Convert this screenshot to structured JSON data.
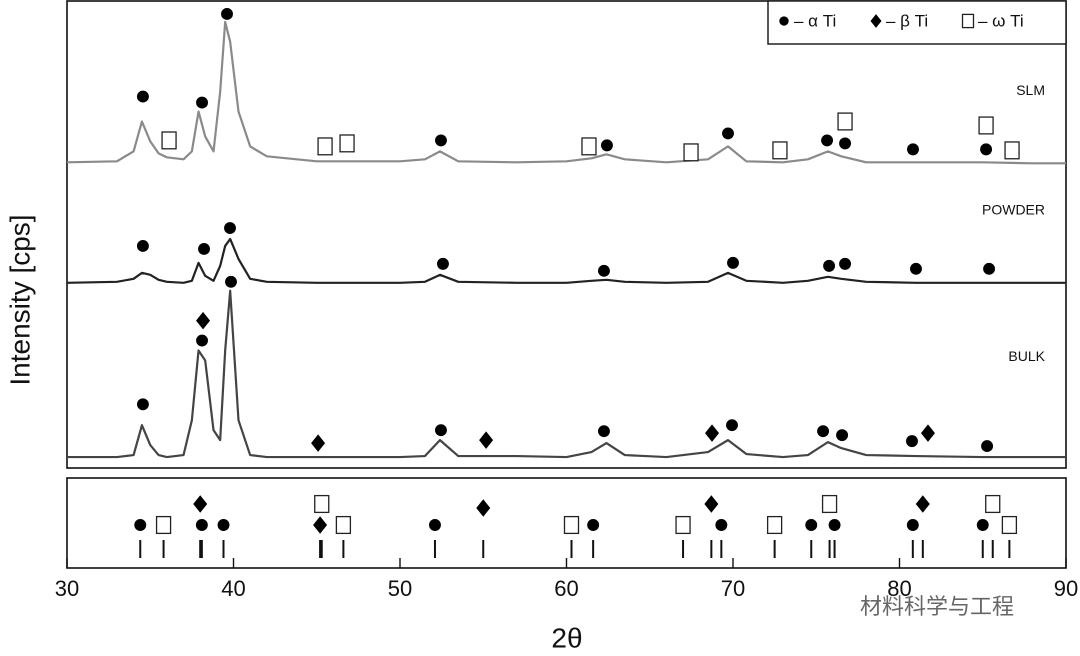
{
  "chart_data": {
    "type": "line",
    "x_label": "2θ",
    "y_label": "Intensity [cps]",
    "xlim": [
      30,
      90
    ],
    "xticks": [
      30,
      40,
      50,
      60,
      70,
      80,
      90
    ],
    "ylim": [
      0,
      468
    ],
    "x": [
      30,
      33,
      34,
      34.5,
      35,
      35.5,
      36,
      37,
      37.5,
      37.9,
      38.3,
      38.8,
      39.2,
      39.5,
      39.8,
      40.3,
      41,
      42,
      45,
      50,
      51.5,
      52.4,
      53.5,
      57,
      60,
      61.5,
      62.4,
      63.5,
      66,
      68.5,
      69.7,
      70.8,
      73,
      74.5,
      75.7,
      76.5,
      78,
      81,
      85,
      88,
      90
    ],
    "series": [
      {
        "name": "SLM",
        "color": "#8a8a8a",
        "values": [
          307,
          308,
          318,
          348,
          328,
          316,
          312,
          310,
          318,
          358,
          333,
          318,
          378,
          448,
          428,
          358,
          323,
          313,
          308,
          308,
          310,
          318,
          308,
          307,
          308,
          311,
          315,
          310,
          307,
          310,
          323,
          308,
          307,
          310,
          318,
          313,
          307,
          307,
          307,
          306,
          306
        ],
        "markers": [
          {
            "symbol": "circle",
            "x": [
              34.56,
              38.11,
              39.61,
              52.46,
              62.43,
              69.7,
              75.65,
              76.73,
              80.81,
              85.2
            ],
            "y": [
              373,
              367,
              456,
              329,
              324,
              336,
              329,
              326,
              320,
              320
            ]
          },
          {
            "symbol": "square",
            "x": [
              36.13,
              45.5,
              46.82,
              61.35,
              67.48,
              72.82,
              76.73,
              85.2,
              86.76
            ],
            "y": [
              329,
              323,
              326,
              323,
              317,
              319,
              348,
              344,
              319
            ]
          }
        ]
      },
      {
        "name": "POWDER",
        "color": "#222222",
        "values": [
          186,
          187,
          190,
          196,
          194,
          189,
          187,
          186,
          188,
          206,
          193,
          188,
          203,
          223,
          230,
          210,
          190,
          187,
          186,
          186,
          187,
          194,
          187,
          186,
          186,
          188,
          189,
          187,
          186,
          187,
          196,
          188,
          186,
          188,
          192,
          190,
          187,
          186,
          186,
          186,
          186
        ],
        "markers": [
          {
            "symbol": "circle",
            "x": [
              34.56,
              38.23,
              39.79,
              52.58,
              62.25,
              70,
              75.77,
              76.73,
              80.99,
              85.38
            ],
            "y": [
              223,
              220,
              241,
              205,
              198,
              206,
              203,
              205,
              200,
              200
            ]
          }
        ]
      },
      {
        "name": "BULK",
        "color": "#444444",
        "values": [
          11,
          11,
          13,
          43,
          23,
          13,
          11,
          13,
          48,
          118,
          108,
          38,
          28,
          118,
          178,
          48,
          13,
          11,
          11,
          11,
          12,
          28,
          12,
          12,
          11,
          16,
          25,
          13,
          11,
          16,
          28,
          14,
          11,
          13,
          26,
          20,
          13,
          12,
          11,
          11,
          11
        ],
        "markers": [
          {
            "symbol": "circle",
            "x": [
              34.56,
              38.11,
              39.85,
              52.46,
              62.25,
              69.94,
              75.41,
              76.55,
              80.75,
              85.26
            ],
            "y": [
              64,
              128,
              187,
              38,
              37,
              43,
              37,
              33,
              27,
              22
            ]
          },
          {
            "symbol": "diamond",
            "x": [
              38.17,
              45.08,
              55.17,
              68.74,
              81.71
            ],
            "y": [
              148,
              25,
              28,
              35,
              35
            ]
          }
        ]
      }
    ],
    "phases": [
      {
        "name": "– α Ti",
        "symbol": "circle",
        "reference": [
          34.4,
          38.1,
          39.4,
          52.1,
          61.6,
          69.3,
          74.7,
          76.1,
          80.8,
          85.0
        ]
      },
      {
        "name": "– β Ti",
        "symbol": "diamond",
        "reference": [
          38.0,
          45.2,
          55.0,
          68.7,
          81.4
        ]
      },
      {
        "name": "– ω Ti",
        "symbol": "square",
        "reference": [
          35.8,
          45.3,
          46.6,
          60.3,
          67.0,
          72.5,
          75.8,
          85.6,
          86.6
        ]
      }
    ],
    "watermark": "材料科学与工程"
  }
}
